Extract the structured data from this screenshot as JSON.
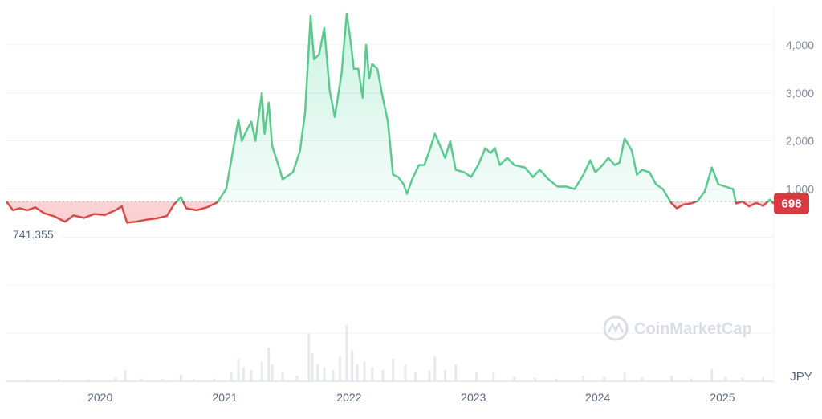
{
  "chart_data": {
    "type": "area",
    "currency": "JPY",
    "baseline_label": "741.355",
    "baseline_value": 741.355,
    "current_label": "698",
    "current_value": 698,
    "watermark": "CoinMarketCap",
    "y_ticks": [
      {
        "label": "4,000",
        "value": 4000
      },
      {
        "label": "3,000",
        "value": 3000
      },
      {
        "label": "2,000",
        "value": 2000
      },
      {
        "label": "1,000",
        "value": 1000
      }
    ],
    "ylim": [
      -3000,
      4800
    ],
    "xlim": [
      "2019-04-01",
      "2025-06-01"
    ],
    "x_ticks": [
      {
        "label": "2020",
        "date": "2020-01-01"
      },
      {
        "label": "2021",
        "date": "2021-01-01"
      },
      {
        "label": "2022",
        "date": "2022-01-01"
      },
      {
        "label": "2023",
        "date": "2023-01-01"
      },
      {
        "label": "2024",
        "date": "2024-01-01"
      },
      {
        "label": "2025",
        "date": "2025-01-01"
      }
    ],
    "grid": true,
    "colors": {
      "up": "#16c784",
      "down": "#ea3943",
      "line_up": "#5cc98f",
      "line_down": "#d84a4a",
      "badge": "#d93a42",
      "grid": "#eff2f5",
      "volume": "#e6e8ec"
    },
    "price": [
      [
        "2019-04-01",
        741
      ],
      [
        "2019-04-20",
        560
      ],
      [
        "2019-05-10",
        600
      ],
      [
        "2019-06-01",
        560
      ],
      [
        "2019-06-25",
        620
      ],
      [
        "2019-07-20",
        500
      ],
      [
        "2019-08-20",
        430
      ],
      [
        "2019-09-20",
        320
      ],
      [
        "2019-10-15",
        450
      ],
      [
        "2019-11-15",
        400
      ],
      [
        "2019-12-15",
        480
      ],
      [
        "2020-01-15",
        460
      ],
      [
        "2020-02-15",
        560
      ],
      [
        "2020-03-05",
        640
      ],
      [
        "2020-03-20",
        300
      ],
      [
        "2020-04-15",
        320
      ],
      [
        "2020-05-15",
        360
      ],
      [
        "2020-06-15",
        390
      ],
      [
        "2020-07-15",
        440
      ],
      [
        "2020-08-05",
        680
      ],
      [
        "2020-08-25",
        830
      ],
      [
        "2020-09-10",
        600
      ],
      [
        "2020-10-10",
        560
      ],
      [
        "2020-11-10",
        620
      ],
      [
        "2020-12-10",
        720
      ],
      [
        "2021-01-05",
        1000
      ],
      [
        "2021-01-20",
        1600
      ],
      [
        "2021-02-10",
        2450
      ],
      [
        "2021-02-20",
        2000
      ],
      [
        "2021-03-05",
        2200
      ],
      [
        "2021-03-20",
        2400
      ],
      [
        "2021-04-01",
        2000
      ],
      [
        "2021-04-10",
        2500
      ],
      [
        "2021-04-20",
        3000
      ],
      [
        "2021-04-28",
        2150
      ],
      [
        "2021-05-10",
        2800
      ],
      [
        "2021-05-20",
        1900
      ],
      [
        "2021-06-05",
        1550
      ],
      [
        "2021-06-20",
        1200
      ],
      [
        "2021-07-20",
        1350
      ],
      [
        "2021-08-10",
        1800
      ],
      [
        "2021-08-25",
        2600
      ],
      [
        "2021-09-10",
        4600
      ],
      [
        "2021-09-20",
        3700
      ],
      [
        "2021-10-05",
        3800
      ],
      [
        "2021-10-20",
        4350
      ],
      [
        "2021-11-05",
        3050
      ],
      [
        "2021-11-20",
        2500
      ],
      [
        "2021-12-10",
        3400
      ],
      [
        "2021-12-25",
        4650
      ],
      [
        "2022-01-05",
        4100
      ],
      [
        "2022-01-15",
        3500
      ],
      [
        "2022-01-28",
        3500
      ],
      [
        "2022-02-10",
        2900
      ],
      [
        "2022-02-20",
        4000
      ],
      [
        "2022-03-01",
        3300
      ],
      [
        "2022-03-10",
        3600
      ],
      [
        "2022-03-25",
        3500
      ],
      [
        "2022-04-10",
        2900
      ],
      [
        "2022-04-25",
        2400
      ],
      [
        "2022-05-10",
        1300
      ],
      [
        "2022-05-25",
        1250
      ],
      [
        "2022-06-10",
        1100
      ],
      [
        "2022-06-20",
        900
      ],
      [
        "2022-07-05",
        1200
      ],
      [
        "2022-07-25",
        1500
      ],
      [
        "2022-08-10",
        1500
      ],
      [
        "2022-08-25",
        1800
      ],
      [
        "2022-09-10",
        2150
      ],
      [
        "2022-09-25",
        1900
      ],
      [
        "2022-10-10",
        1650
      ],
      [
        "2022-10-25",
        2000
      ],
      [
        "2022-11-10",
        1400
      ],
      [
        "2022-12-05",
        1350
      ],
      [
        "2022-12-25",
        1250
      ],
      [
        "2023-01-15",
        1500
      ],
      [
        "2023-02-05",
        1850
      ],
      [
        "2023-02-20",
        1750
      ],
      [
        "2023-03-05",
        1850
      ],
      [
        "2023-03-20",
        1500
      ],
      [
        "2023-04-10",
        1650
      ],
      [
        "2023-05-01",
        1500
      ],
      [
        "2023-06-01",
        1450
      ],
      [
        "2023-06-25",
        1250
      ],
      [
        "2023-07-15",
        1400
      ],
      [
        "2023-08-10",
        1200
      ],
      [
        "2023-09-05",
        1050
      ],
      [
        "2023-10-01",
        1050
      ],
      [
        "2023-10-25",
        1000
      ],
      [
        "2023-11-20",
        1300
      ],
      [
        "2023-12-10",
        1600
      ],
      [
        "2023-12-25",
        1350
      ],
      [
        "2024-01-15",
        1500
      ],
      [
        "2024-02-01",
        1650
      ],
      [
        "2024-02-20",
        1500
      ],
      [
        "2024-03-05",
        1550
      ],
      [
        "2024-03-20",
        2050
      ],
      [
        "2024-04-10",
        1800
      ],
      [
        "2024-04-25",
        1300
      ],
      [
        "2024-05-10",
        1400
      ],
      [
        "2024-06-01",
        1350
      ],
      [
        "2024-06-20",
        1100
      ],
      [
        "2024-07-10",
        1000
      ],
      [
        "2024-08-05",
        700
      ],
      [
        "2024-08-20",
        600
      ],
      [
        "2024-09-10",
        680
      ],
      [
        "2024-10-01",
        700
      ],
      [
        "2024-10-20",
        750
      ],
      [
        "2024-11-10",
        950
      ],
      [
        "2024-12-01",
        1450
      ],
      [
        "2024-12-20",
        1100
      ],
      [
        "2025-01-10",
        1050
      ],
      [
        "2025-02-01",
        1000
      ],
      [
        "2025-02-10",
        700
      ],
      [
        "2025-03-01",
        740
      ],
      [
        "2025-03-20",
        640
      ],
      [
        "2025-04-10",
        710
      ],
      [
        "2025-05-01",
        650
      ],
      [
        "2025-05-20",
        780
      ],
      [
        "2025-06-01",
        698
      ]
    ],
    "volume": [
      [
        "2019-06-01",
        0.03
      ],
      [
        "2019-09-01",
        0.04
      ],
      [
        "2019-12-01",
        0.03
      ],
      [
        "2020-02-15",
        0.06
      ],
      [
        "2020-03-15",
        0.2
      ],
      [
        "2020-05-01",
        0.05
      ],
      [
        "2020-07-01",
        0.04
      ],
      [
        "2020-08-25",
        0.12
      ],
      [
        "2020-10-01",
        0.04
      ],
      [
        "2020-12-01",
        0.05
      ],
      [
        "2021-01-20",
        0.15
      ],
      [
        "2021-02-10",
        0.4
      ],
      [
        "2021-02-25",
        0.25
      ],
      [
        "2021-03-20",
        0.2
      ],
      [
        "2021-04-20",
        0.35
      ],
      [
        "2021-05-10",
        0.6
      ],
      [
        "2021-05-20",
        0.3
      ],
      [
        "2021-06-20",
        0.15
      ],
      [
        "2021-08-01",
        0.1
      ],
      [
        "2021-09-05",
        0.85
      ],
      [
        "2021-09-15",
        0.5
      ],
      [
        "2021-10-01",
        0.3
      ],
      [
        "2021-10-20",
        0.25
      ],
      [
        "2021-11-15",
        0.2
      ],
      [
        "2021-12-05",
        0.45
      ],
      [
        "2021-12-25",
        1.0
      ],
      [
        "2022-01-10",
        0.55
      ],
      [
        "2022-01-25",
        0.3
      ],
      [
        "2022-02-15",
        0.35
      ],
      [
        "2022-03-10",
        0.25
      ],
      [
        "2022-04-10",
        0.2
      ],
      [
        "2022-05-10",
        0.4
      ],
      [
        "2022-06-15",
        0.3
      ],
      [
        "2022-07-15",
        0.15
      ],
      [
        "2022-08-25",
        0.2
      ],
      [
        "2022-09-10",
        0.45
      ],
      [
        "2022-10-10",
        0.2
      ],
      [
        "2022-11-10",
        0.3
      ],
      [
        "2023-01-10",
        0.15
      ],
      [
        "2023-03-01",
        0.15
      ],
      [
        "2023-05-01",
        0.08
      ],
      [
        "2023-07-01",
        0.06
      ],
      [
        "2023-09-01",
        0.05
      ],
      [
        "2023-11-20",
        0.1
      ],
      [
        "2024-01-20",
        0.08
      ],
      [
        "2024-03-20",
        0.15
      ],
      [
        "2024-05-10",
        0.07
      ],
      [
        "2024-08-05",
        0.1
      ],
      [
        "2024-10-01",
        0.05
      ],
      [
        "2024-12-01",
        0.22
      ],
      [
        "2025-01-10",
        0.08
      ],
      [
        "2025-03-01",
        0.06
      ],
      [
        "2025-05-01",
        0.07
      ]
    ]
  }
}
